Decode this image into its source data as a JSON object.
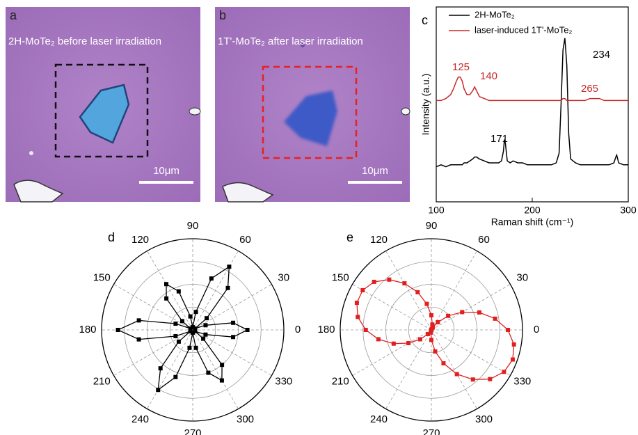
{
  "panels": [
    {
      "label": "a",
      "caption": "2H-MoTe₂ before laser irradiation",
      "scale_bar": "10μm"
    },
    {
      "label": "b",
      "caption": "1T'-MoTe₂ after laser irradiation",
      "scale_bar": "10μm"
    }
  ],
  "chart_data": [
    {
      "type": "line",
      "panel": "c",
      "xlabel": "Raman shift (cm⁻¹)",
      "ylabel": "Intensity (a.u.)",
      "xlim": [
        100,
        300
      ],
      "xticks": [
        100,
        200,
        300
      ],
      "ylim": [
        0,
        100
      ],
      "legend": "upper left",
      "x": [
        100,
        105,
        110,
        115,
        118,
        121,
        123,
        125,
        127,
        129,
        132,
        135,
        138,
        140,
        142,
        145,
        150,
        155,
        160,
        165,
        168,
        170,
        171,
        172,
        174,
        177,
        180,
        185,
        190,
        195,
        200,
        205,
        210,
        215,
        220,
        225,
        228,
        230,
        232,
        234,
        236,
        238,
        240,
        245,
        250,
        255,
        260,
        265,
        270,
        275,
        280,
        285,
        287,
        288,
        290,
        295,
        300
      ],
      "series": [
        {
          "name": "2H-MoTe₂",
          "color": "#000000",
          "values": [
            18,
            19,
            18,
            19,
            19,
            19,
            19,
            19,
            19,
            20,
            20,
            21,
            22,
            23,
            23,
            22,
            21,
            20,
            20,
            20,
            21,
            26,
            32,
            30,
            21,
            20,
            21,
            20,
            20,
            19,
            19,
            19,
            19,
            19,
            19,
            20,
            25,
            50,
            78,
            84,
            70,
            35,
            22,
            20,
            19,
            19,
            19,
            19,
            19,
            19,
            19,
            20,
            23,
            24,
            20,
            19,
            19
          ]
        },
        {
          "name": "laser-induced 1T'-MoTe₂",
          "color": "#c62828",
          "values": [
            52,
            52,
            53,
            55,
            58,
            62,
            64,
            64,
            62,
            58,
            55,
            55,
            57,
            59,
            57,
            54,
            53,
            52,
            52,
            52,
            52,
            52,
            52,
            52,
            52,
            52,
            52,
            52,
            52,
            52,
            52,
            52,
            52,
            52,
            52,
            52,
            52,
            52,
            53,
            53,
            52,
            52,
            52,
            52,
            52,
            52,
            53,
            53,
            53,
            52,
            52,
            52,
            52,
            52,
            52,
            52,
            52
          ]
        }
      ],
      "annotations": [
        {
          "text": "125",
          "color": "#c62828"
        },
        {
          "text": "140",
          "color": "#c62828"
        },
        {
          "text": "265",
          "color": "#c62828"
        },
        {
          "text": "171",
          "color": "#000000"
        },
        {
          "text": "234",
          "color": "#000000"
        }
      ]
    },
    {
      "type": "polar",
      "panel": "d",
      "color": "#000000",
      "rlim": [
        0,
        1
      ],
      "rticks": [
        0.25,
        0.5,
        0.75,
        1
      ],
      "thetaticks": [
        0,
        30,
        60,
        90,
        120,
        150,
        180,
        210,
        240,
        270,
        300,
        330
      ],
      "theta": [
        0,
        10,
        20,
        30,
        40,
        50,
        60,
        70,
        80,
        90,
        100,
        110,
        120,
        130,
        140,
        150,
        160,
        170,
        180,
        190,
        200,
        210,
        220,
        230,
        240,
        250,
        260,
        270,
        280,
        290,
        300,
        310,
        320,
        330,
        340,
        350
      ],
      "values": [
        0.6,
        0.45,
        0.15,
        0.03,
        0.2,
        0.6,
        0.8,
        0.6,
        0.2,
        0.03,
        0.15,
        0.45,
        0.58,
        0.45,
        0.15,
        0.03,
        0.2,
        0.6,
        0.82,
        0.6,
        0.2,
        0.03,
        0.2,
        0.55,
        0.76,
        0.55,
        0.2,
        0.03,
        0.2,
        0.5,
        0.64,
        0.5,
        0.15,
        0.03,
        0.15,
        0.45
      ]
    },
    {
      "type": "polar",
      "panel": "e",
      "color": "#e02020",
      "rlim": [
        0,
        1
      ],
      "rticks": [
        0.25,
        0.5,
        0.75,
        1
      ],
      "thetaticks": [
        0,
        30,
        60,
        90,
        120,
        150,
        180,
        210,
        240,
        270,
        300,
        330
      ],
      "theta": [
        0,
        10,
        20,
        30,
        40,
        50,
        60,
        70,
        80,
        90,
        100,
        110,
        120,
        130,
        140,
        150,
        160,
        170,
        180,
        190,
        200,
        210,
        220,
        230,
        240,
        250,
        260,
        270,
        280,
        290,
        300,
        310,
        320,
        330,
        340,
        350
      ],
      "values": [
        0.84,
        0.71,
        0.56,
        0.39,
        0.24,
        0.11,
        0.03,
        0.01,
        0.06,
        0.16,
        0.29,
        0.44,
        0.59,
        0.72,
        0.82,
        0.87,
        0.87,
        0.82,
        0.72,
        0.59,
        0.44,
        0.29,
        0.16,
        0.06,
        0.01,
        0,
        0.03,
        0.11,
        0.24,
        0.39,
        0.56,
        0.71,
        0.84,
        0.92,
        0.95,
        0.92
      ]
    }
  ]
}
